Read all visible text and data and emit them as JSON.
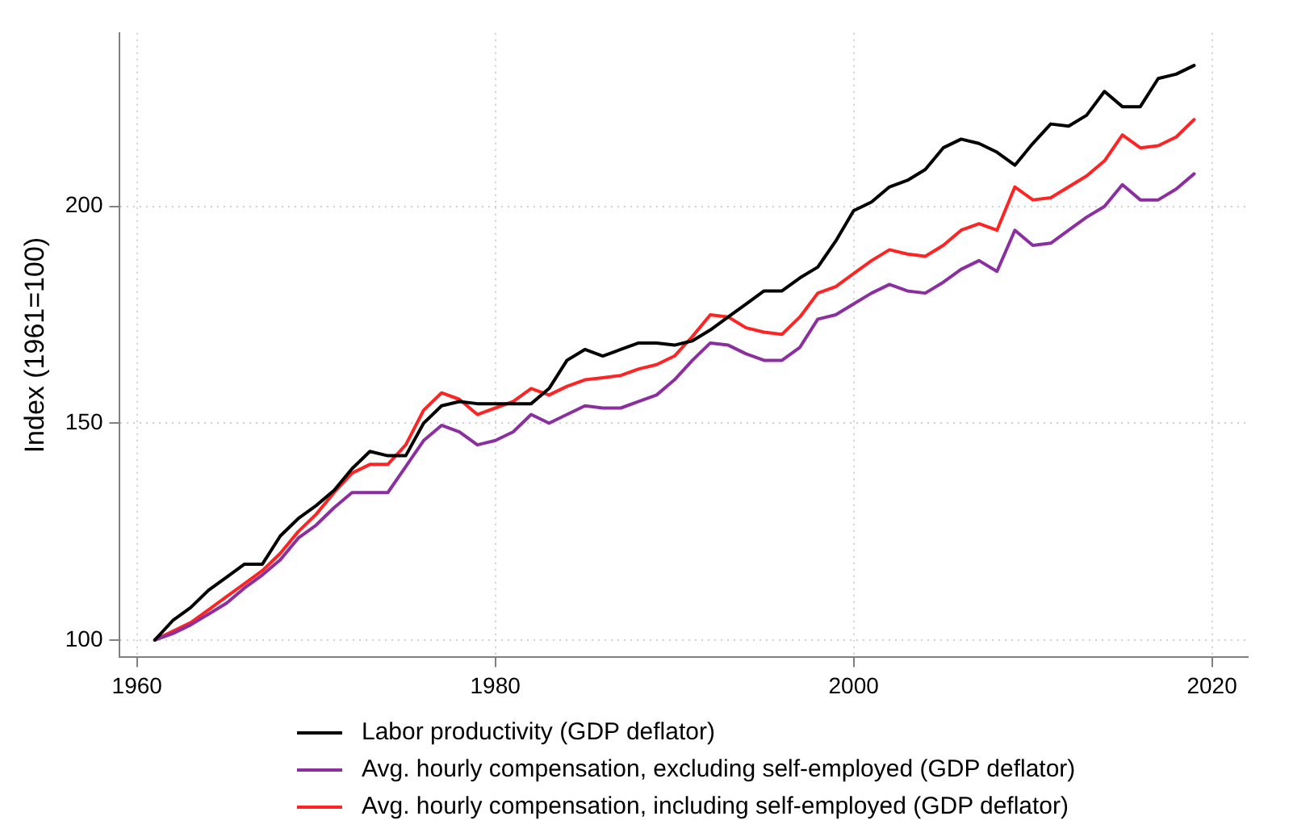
{
  "chart_data": {
    "type": "line",
    "ylabel": "Index (1961=100)",
    "x": [
      1961,
      1962,
      1963,
      1964,
      1965,
      1966,
      1967,
      1968,
      1969,
      1970,
      1971,
      1972,
      1973,
      1974,
      1975,
      1976,
      1977,
      1978,
      1979,
      1980,
      1981,
      1982,
      1983,
      1984,
      1985,
      1986,
      1987,
      1988,
      1989,
      1990,
      1991,
      1992,
      1993,
      1994,
      1995,
      1996,
      1997,
      1998,
      1999,
      2000,
      2001,
      2002,
      2003,
      2004,
      2005,
      2006,
      2007,
      2008,
      2009,
      2010,
      2011,
      2012,
      2013,
      2014,
      2015,
      2016,
      2017,
      2018,
      2019
    ],
    "series": [
      {
        "name": "Labor productivity (GDP deflator)",
        "color": "#000000",
        "values": [
          100,
          104.5,
          107.5,
          111.5,
          114.5,
          117.5,
          117.5,
          124,
          128,
          131,
          134.5,
          139.5,
          143.5,
          142.5,
          142.5,
          150,
          154,
          155,
          154.5,
          154.5,
          154.5,
          154.5,
          158,
          164.5,
          167,
          165.5,
          167,
          168.5,
          168.5,
          168,
          169,
          171.5,
          174.5,
          177.5,
          180.5,
          180.5,
          183.5,
          186,
          192,
          199,
          201,
          204.5,
          206,
          208.5,
          213.5,
          215.5,
          214.5,
          212.5,
          209.5,
          214.5,
          219,
          218.5,
          221,
          226.5,
          223,
          223,
          229.5,
          230.5,
          232.5
        ]
      },
      {
        "name": "Avg. hourly compensation, excluding self-employed (GDP deflator)",
        "color": "#8b2fa0",
        "values": [
          100,
          101.5,
          103.5,
          106,
          108.5,
          112,
          115,
          118.5,
          123.5,
          126.5,
          130.5,
          134,
          134,
          134,
          140,
          146,
          149.5,
          148,
          145,
          146,
          148,
          152,
          150,
          152,
          154,
          153.5,
          153.5,
          155,
          156.5,
          160,
          164.5,
          168.5,
          168,
          166,
          164.5,
          164.5,
          167.5,
          174,
          175,
          177.5,
          180,
          182,
          180.5,
          180,
          182.5,
          185.5,
          187.5,
          185,
          194.5,
          191,
          191.5,
          194.5,
          197.5,
          200,
          205,
          201.5,
          201.5,
          204,
          207.5
        ]
      },
      {
        "name": "Avg. hourly compensation, including self-employed (GDP deflator)",
        "color": "#ff2424",
        "values": [
          100,
          102,
          104,
          107,
          110,
          113,
          116,
          120,
          125,
          129,
          134,
          138.5,
          140.5,
          140.5,
          145,
          153,
          157,
          155.5,
          152,
          153.5,
          155,
          158,
          156.5,
          158.5,
          160,
          160.5,
          161,
          162.5,
          163.5,
          165.5,
          170,
          175,
          174.5,
          172,
          171,
          170.5,
          174.5,
          180,
          181.5,
          184.5,
          187.5,
          190,
          189,
          188.5,
          191,
          194.5,
          196,
          194.5,
          204.5,
          201.5,
          202,
          204.5,
          207,
          210.5,
          216.5,
          213.5,
          214,
          216,
          220
        ]
      }
    ],
    "xlim": [
      1959,
      2022
    ],
    "xticks": [
      1960,
      1980,
      2000,
      2020
    ],
    "ylim": [
      96,
      240
    ],
    "yticks": [
      100,
      150,
      200
    ],
    "grid": true,
    "legend": "bottom",
    "marker": "none",
    "line_style": "solid"
  }
}
